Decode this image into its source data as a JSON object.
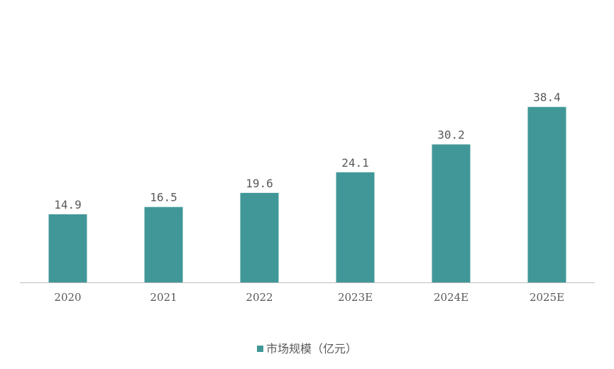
{
  "chart_data": {
    "type": "bar",
    "categories": [
      "2020",
      "2021",
      "2022",
      "2023E",
      "2024E",
      "2025E"
    ],
    "series": [
      {
        "name": "市场规模（亿元）",
        "values": [
          14.9,
          16.5,
          19.6,
          24.1,
          30.2,
          38.4
        ],
        "color": "#419797"
      }
    ],
    "data_labels": [
      "14.9",
      "16.5",
      "19.6",
      "24.1",
      "30.2",
      "38.4"
    ],
    "ylim": [
      0,
      40
    ],
    "grid": false,
    "legend_position": "bottom"
  },
  "colors": {
    "bar": "#419797",
    "axis": "#bfbfbf",
    "text": "#595959"
  }
}
